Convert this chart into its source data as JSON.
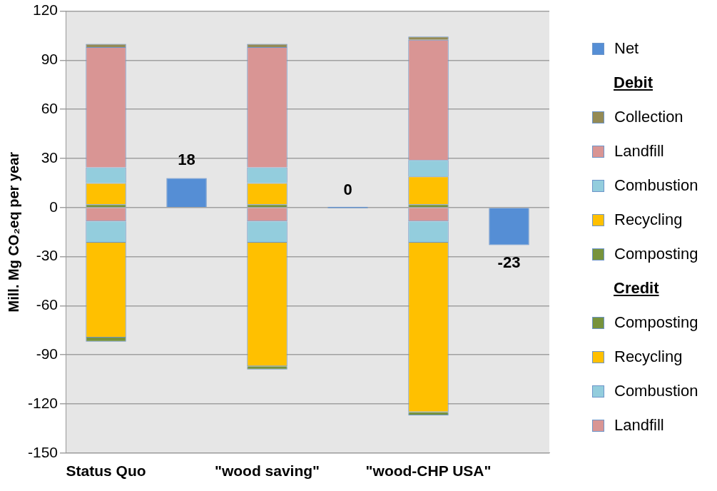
{
  "chart_data": {
    "type": "bar",
    "stacked": true,
    "ylabel": "Mill. Mg CO₂eq per year",
    "categories": [
      "Status Quo",
      null,
      "\"wood saving\"",
      null,
      "\"wood-CHP USA\"",
      null
    ],
    "series": [
      {
        "name": "Landfill",
        "color": "#d99594",
        "values": [
          -8.5,
          null,
          -8.5,
          null,
          -8.5,
          null
        ]
      },
      {
        "name": "Combustion",
        "color": "#93cddd",
        "values": [
          -13,
          null,
          -13,
          null,
          -13,
          null
        ]
      },
      {
        "name": "Recycling",
        "color": "#ffc000",
        "values": [
          -58,
          null,
          -75.5,
          null,
          -103.5,
          null
        ]
      },
      {
        "name": "Composting",
        "color": "#77933c",
        "values": [
          -2.5,
          null,
          -2,
          null,
          -2,
          null
        ]
      },
      {
        "name": "Composting",
        "color": "#77933c",
        "values": [
          2,
          null,
          2,
          null,
          2,
          null
        ]
      },
      {
        "name": "Recycling",
        "color": "#ffc000",
        "values": [
          13,
          null,
          13,
          null,
          17,
          null
        ]
      },
      {
        "name": "Combustion",
        "color": "#93cddd",
        "values": [
          9.5,
          null,
          9.5,
          null,
          10,
          null
        ]
      },
      {
        "name": "Landfill",
        "color": "#d99594",
        "values": [
          73.5,
          null,
          73.5,
          null,
          73.5,
          null
        ]
      },
      {
        "name": "Collection",
        "color": "#948a54",
        "values": [
          2,
          null,
          2,
          null,
          2,
          null
        ]
      },
      {
        "name": "Net",
        "color": "#558ed5",
        "values": [
          null,
          18,
          null,
          0,
          null,
          -23
        ],
        "value_labels": [
          null,
          "18",
          null,
          "0",
          null,
          "-23"
        ]
      }
    ],
    "annotations": [
      "Debit",
      "Credit"
    ],
    "ylim": [
      -150,
      120
    ],
    "yticks": [
      -150,
      -120,
      -90,
      -60,
      -30,
      0,
      30,
      60,
      90,
      120
    ],
    "grid": "y",
    "legend": "right"
  }
}
